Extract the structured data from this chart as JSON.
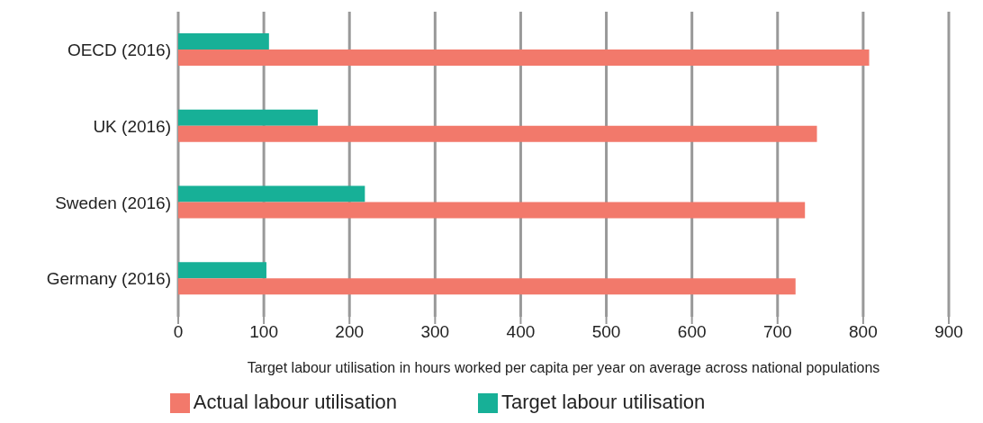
{
  "chart_data": {
    "type": "bar",
    "orientation": "horizontal",
    "categories": [
      "OECD (2016)",
      "UK (2016)",
      "Sweden (2016)",
      "Germany (2016)"
    ],
    "series": [
      {
        "name": "Target labour utilisation",
        "color": "#17b097",
        "values": [
          106,
          163,
          218,
          103
        ]
      },
      {
        "name": "Actual labour utilisation",
        "color": "#f2796b",
        "values": [
          807,
          746,
          732,
          721
        ]
      }
    ],
    "xlabel": "Target labour utilisation in hours worked per capita per year on average across national populations",
    "xlim": [
      0,
      900
    ],
    "xticks": [
      0,
      100,
      200,
      300,
      400,
      500,
      600,
      700,
      800,
      900
    ],
    "grid": "x",
    "legend": "bottom"
  }
}
